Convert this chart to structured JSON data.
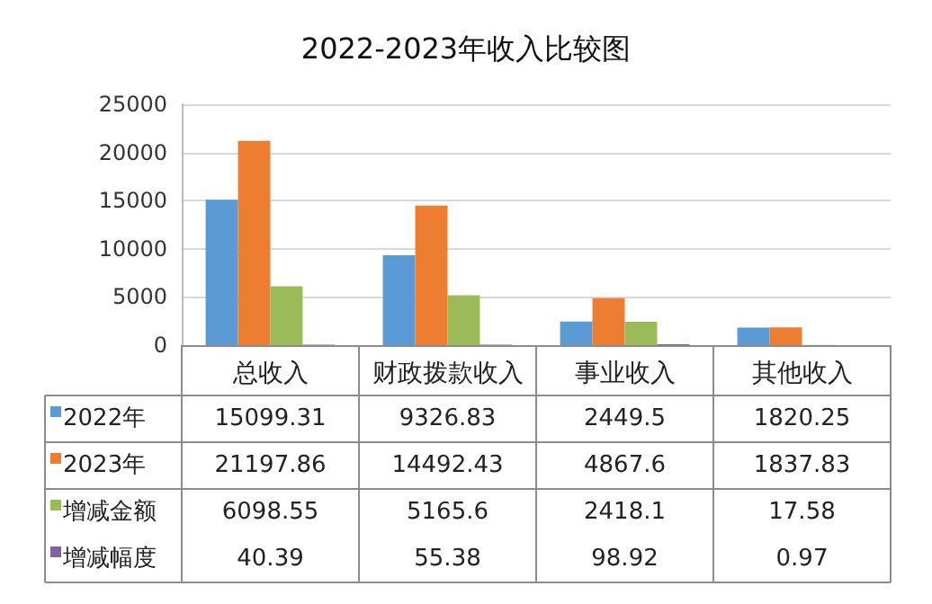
{
  "chart_data": {
    "type": "bar",
    "title": "2022-2023年收入比较图",
    "categories": [
      "总收入",
      "财政拨款收入",
      "事业收入",
      "其他收入"
    ],
    "series": [
      {
        "name": "2022年",
        "color": "#5b9bd5",
        "values": [
          15099.31,
          9326.83,
          2449.5,
          1820.25
        ]
      },
      {
        "name": "2023年",
        "color": "#ed7d31",
        "values": [
          21197.86,
          14492.43,
          4867.6,
          1837.83
        ]
      },
      {
        "name": "增减金额",
        "color": "#9bbb59",
        "values": [
          6098.55,
          5165.6,
          2418.1,
          17.58
        ]
      },
      {
        "name": "增减幅度",
        "color": "#8064a2",
        "values": [
          40.39,
          55.38,
          98.92,
          0.97
        ]
      }
    ],
    "ylim": [
      0,
      25000
    ],
    "yticks": [
      0,
      5000,
      10000,
      15000,
      20000,
      25000
    ],
    "grid": "y",
    "data_labels": true,
    "legend": "bottom left"
  }
}
